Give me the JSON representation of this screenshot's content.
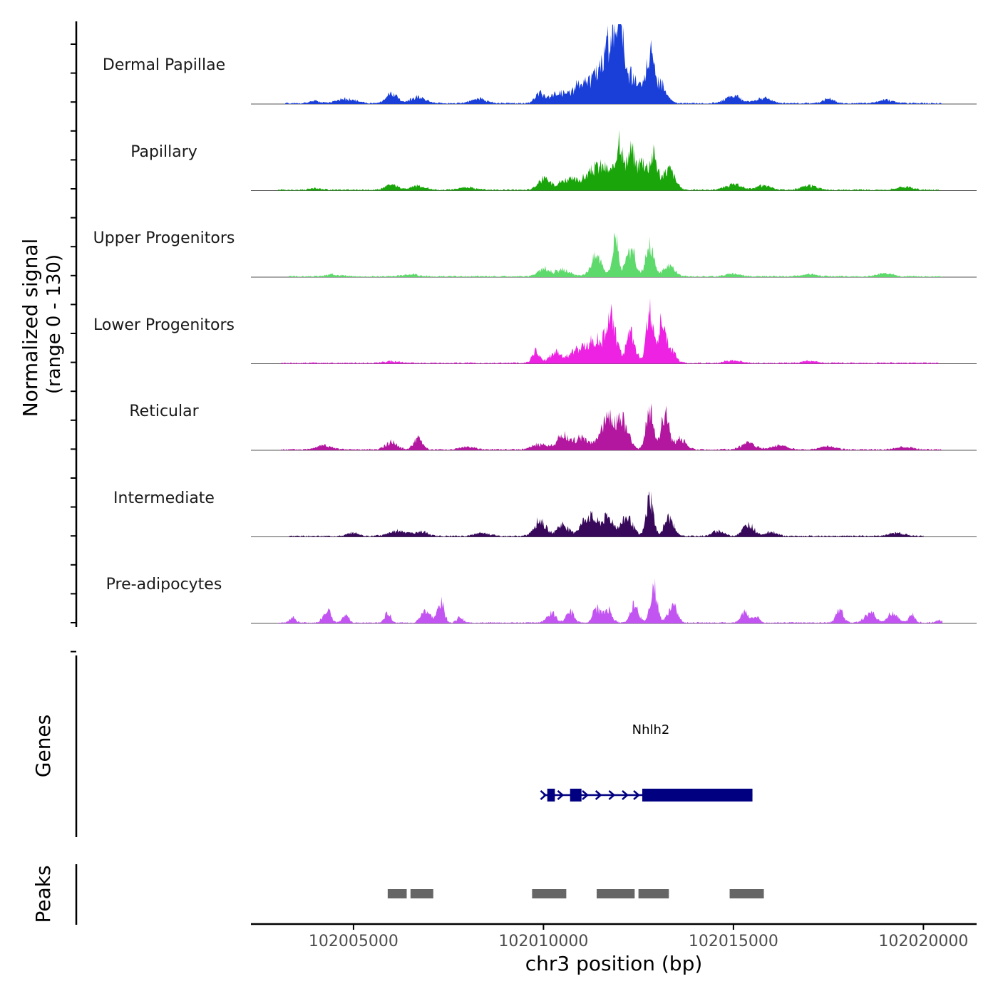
{
  "chart_data": {
    "type": "area",
    "title": "",
    "xlabel": "chr3 position (bp)",
    "ylabel_line1": "Normalized signal",
    "ylabel_line2": "(range 0 - 130)",
    "xlim": [
      102002300,
      102021400
    ],
    "ylim": [
      0,
      130
    ],
    "x_ticks": [
      102005000,
      102010000,
      102015000,
      102020000
    ],
    "x_tick_labels": [
      "102005000",
      "102010000",
      "102015000",
      "102020000"
    ],
    "tracks": [
      {
        "name": "Dermal Papillae",
        "color": "#1a3fd9",
        "range": [
          102003200,
          102020500
        ],
        "peaks": [
          [
            102004000,
            4,
            150
          ],
          [
            102004800,
            8,
            250
          ],
          [
            102006000,
            18,
            150
          ],
          [
            102006700,
            12,
            200
          ],
          [
            102008300,
            8,
            200
          ],
          [
            102009900,
            18,
            120
          ],
          [
            102010400,
            20,
            200
          ],
          [
            102010900,
            16,
            150
          ],
          [
            102011500,
            55,
            400
          ],
          [
            102011800,
            75,
            150
          ],
          [
            102012000,
            120,
            80
          ],
          [
            102012300,
            45,
            250
          ],
          [
            102012800,
            85,
            100
          ],
          [
            102013100,
            35,
            150
          ],
          [
            102015000,
            14,
            200
          ],
          [
            102015800,
            10,
            200
          ],
          [
            102017500,
            8,
            150
          ],
          [
            102019000,
            6,
            200
          ]
        ]
      },
      {
        "name": "Papillary",
        "color": "#1aa60a",
        "range": [
          102003000,
          102020400
        ],
        "peaks": [
          [
            102004000,
            3,
            150
          ],
          [
            102006000,
            10,
            150
          ],
          [
            102006700,
            7,
            200
          ],
          [
            102008000,
            5,
            200
          ],
          [
            102010000,
            20,
            150
          ],
          [
            102010600,
            18,
            250
          ],
          [
            102011500,
            45,
            350
          ],
          [
            102012000,
            90,
            80
          ],
          [
            102012300,
            70,
            100
          ],
          [
            102012600,
            55,
            120
          ],
          [
            102012900,
            65,
            100
          ],
          [
            102013300,
            40,
            150
          ],
          [
            102015000,
            10,
            200
          ],
          [
            102015800,
            8,
            200
          ],
          [
            102017000,
            8,
            200
          ],
          [
            102019500,
            6,
            200
          ]
        ]
      },
      {
        "name": "Upper Progenitors",
        "color": "#5ed96b",
        "range": [
          102003300,
          102020500
        ],
        "peaks": [
          [
            102004500,
            4,
            200
          ],
          [
            102006500,
            4,
            200
          ],
          [
            102010000,
            14,
            150
          ],
          [
            102010500,
            12,
            200
          ],
          [
            102011400,
            40,
            150
          ],
          [
            102011900,
            78,
            80
          ],
          [
            102012300,
            50,
            120
          ],
          [
            102012800,
            60,
            100
          ],
          [
            102013300,
            20,
            150
          ],
          [
            102015000,
            5,
            200
          ],
          [
            102017000,
            4,
            200
          ],
          [
            102019000,
            6,
            200
          ]
        ]
      },
      {
        "name": "Lower Progenitors",
        "color": "#ee22e2",
        "range": [
          102003100,
          102020400
        ],
        "peaks": [
          [
            102006000,
            3,
            200
          ],
          [
            102009800,
            22,
            100
          ],
          [
            102010300,
            20,
            150
          ],
          [
            102010800,
            16,
            200
          ],
          [
            102011400,
            45,
            300
          ],
          [
            102011800,
            68,
            120
          ],
          [
            102012300,
            55,
            120
          ],
          [
            102012800,
            98,
            90
          ],
          [
            102013100,
            65,
            100
          ],
          [
            102013300,
            28,
            150
          ],
          [
            102015000,
            5,
            200
          ],
          [
            102017000,
            4,
            200
          ]
        ]
      },
      {
        "name": "Reticular",
        "color": "#b3169f",
        "range": [
          102003100,
          102020500
        ],
        "peaks": [
          [
            102004200,
            8,
            200
          ],
          [
            102006000,
            14,
            150
          ],
          [
            102006700,
            20,
            120
          ],
          [
            102008000,
            5,
            200
          ],
          [
            102009900,
            10,
            200
          ],
          [
            102010500,
            28,
            150
          ],
          [
            102011000,
            22,
            200
          ],
          [
            102011700,
            60,
            180
          ],
          [
            102012100,
            48,
            150
          ],
          [
            102012800,
            74,
            100
          ],
          [
            102013200,
            70,
            100
          ],
          [
            102013600,
            20,
            150
          ],
          [
            102015400,
            12,
            200
          ],
          [
            102016200,
            8,
            200
          ],
          [
            102017500,
            6,
            200
          ],
          [
            102019500,
            5,
            200
          ]
        ]
      },
      {
        "name": "Intermediate",
        "color": "#38095a",
        "range": [
          102003300,
          102020000
        ],
        "peaks": [
          [
            102005000,
            6,
            150
          ],
          [
            102006200,
            10,
            250
          ],
          [
            102006800,
            8,
            150
          ],
          [
            102008400,
            6,
            200
          ],
          [
            102009900,
            30,
            150
          ],
          [
            102010500,
            22,
            150
          ],
          [
            102011200,
            38,
            200
          ],
          [
            102011700,
            34,
            150
          ],
          [
            102012200,
            36,
            150
          ],
          [
            102012800,
            75,
            90
          ],
          [
            102013300,
            35,
            120
          ],
          [
            102014600,
            10,
            150
          ],
          [
            102015400,
            22,
            150
          ],
          [
            102016000,
            8,
            150
          ],
          [
            102019300,
            6,
            200
          ]
        ]
      },
      {
        "name": "Pre-adipocytes",
        "color": "#c254f2",
        "range": [
          102003000,
          102020500
        ],
        "peaks": [
          [
            102003400,
            10,
            80
          ],
          [
            102004300,
            26,
            100
          ],
          [
            102004800,
            14,
            80
          ],
          [
            102005900,
            18,
            80
          ],
          [
            102006900,
            24,
            120
          ],
          [
            102007300,
            38,
            90
          ],
          [
            102007800,
            10,
            80
          ],
          [
            102010200,
            18,
            120
          ],
          [
            102010700,
            22,
            100
          ],
          [
            102011400,
            28,
            100
          ],
          [
            102011700,
            26,
            100
          ],
          [
            102012400,
            38,
            100
          ],
          [
            102012900,
            70,
            90
          ],
          [
            102013400,
            32,
            120
          ],
          [
            102015300,
            22,
            100
          ],
          [
            102015600,
            12,
            80
          ],
          [
            102017800,
            22,
            100
          ],
          [
            102018600,
            18,
            150
          ],
          [
            102019200,
            20,
            120
          ],
          [
            102019700,
            16,
            80
          ],
          [
            102020400,
            5,
            80
          ]
        ]
      }
    ],
    "genes": [
      {
        "name": "Nhlh2",
        "strand": "+",
        "start": 102010000,
        "end": 102015500,
        "exons": [
          [
            102010100,
            102010300
          ],
          [
            102010700,
            102011000
          ],
          [
            102012600,
            102015500
          ]
        ],
        "arrows": [
          102010000,
          102010450,
          102011100,
          102011450,
          102011800,
          102012150,
          102012450
        ],
        "color": "#000080"
      }
    ],
    "genes_label": "Genes",
    "peaks_label": "Peaks",
    "peak_regions": [
      [
        102005900,
        102006400
      ],
      [
        102006500,
        102007100
      ],
      [
        102009700,
        102010600
      ],
      [
        102011400,
        102012400
      ],
      [
        102012500,
        102013300
      ],
      [
        102014900,
        102015800
      ]
    ],
    "peak_color": "#666666"
  }
}
